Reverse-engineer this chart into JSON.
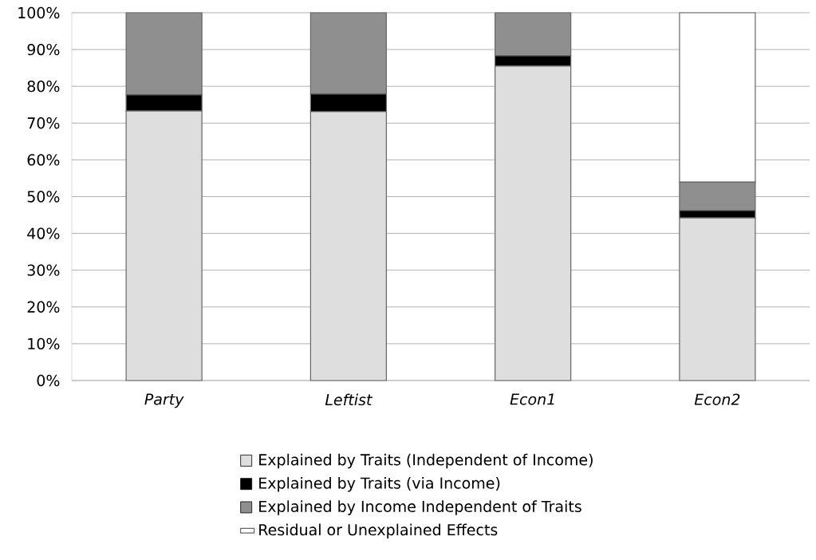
{
  "chart_data": {
    "type": "bar",
    "stacked": true,
    "categories": [
      "Party",
      "Leftist",
      "Econ1",
      "Econ2"
    ],
    "series": [
      {
        "name": "Explained by Traits (Independent of Income)",
        "color": "#dedede",
        "values": [
          73.3,
          73.1,
          85.5,
          44.2
        ]
      },
      {
        "name": "Explained by Traits (via Income)",
        "color": "#000000",
        "values": [
          4.4,
          4.8,
          2.8,
          2.0
        ]
      },
      {
        "name": "Explained by Income Independent of Traits",
        "color": "#8f8f8f",
        "values": [
          22.3,
          22.1,
          11.7,
          7.8
        ]
      },
      {
        "name": "Residual or Unexplained Effects",
        "color": "#ffffff",
        "values": [
          0,
          0,
          0,
          46.0
        ]
      }
    ],
    "ylim": [
      0,
      100
    ],
    "yticks": [
      {
        "value": 0,
        "label": "0%"
      },
      {
        "value": 10,
        "label": "10%"
      },
      {
        "value": 20,
        "label": "20%"
      },
      {
        "value": 30,
        "label": "30%"
      },
      {
        "value": 40,
        "label": "40%"
      },
      {
        "value": 50,
        "label": "50%"
      },
      {
        "value": 60,
        "label": "60%"
      },
      {
        "value": 70,
        "label": "70%"
      },
      {
        "value": 80,
        "label": "80%"
      },
      {
        "value": 90,
        "label": "90%"
      },
      {
        "value": 100,
        "label": "100%"
      }
    ],
    "grid": "y",
    "legend": "bottom"
  }
}
